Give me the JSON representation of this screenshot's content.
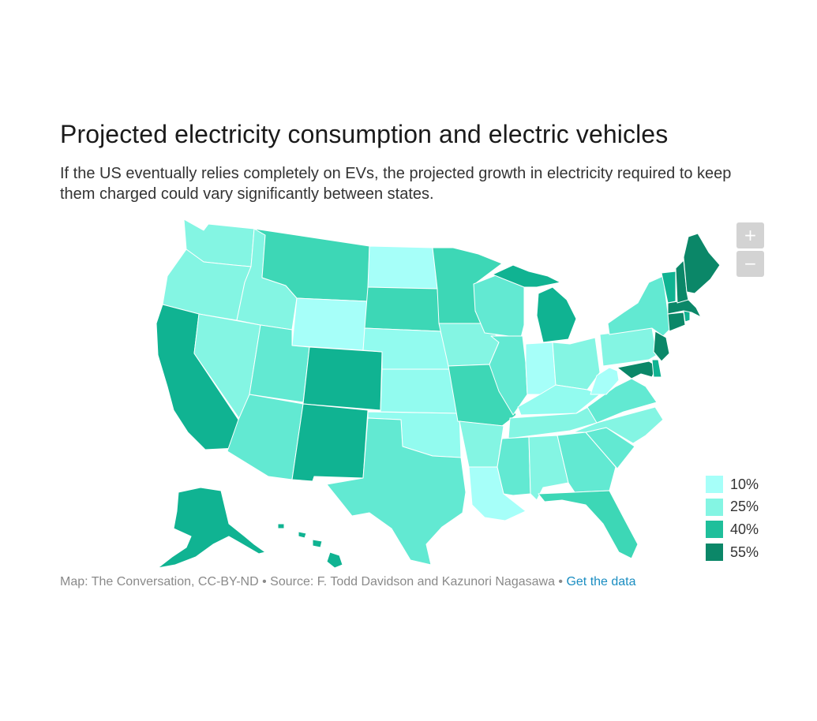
{
  "title": "Projected electricity consumption and electric vehicles",
  "subtitle": "If the US eventually relies completely on EVs, the projected growth in electricity required to keep them charged could vary significantly between states.",
  "zoom": {
    "in_label": "+",
    "out_label": "−"
  },
  "legend": [
    {
      "label": "10%",
      "color": "#a6fff9"
    },
    {
      "label": "25%",
      "color": "#84f5e3"
    },
    {
      "label": "40%",
      "color": "#1fbf9b"
    },
    {
      "label": "55%",
      "color": "#0b8768"
    }
  ],
  "colors": {
    "c10": "#a6fff9",
    "c15": "#92fbef",
    "c25": "#84f5e3",
    "c30": "#62e9d2",
    "c35": "#3dd7b6",
    "c45": "#10b392",
    "c55": "#0b8768"
  },
  "footer": {
    "credit": "Map: The Conversation, CC-BY-ND • Source: F. Todd Davidson and Kazunori Nagasawa • ",
    "link_label": "Get the data"
  }
}
